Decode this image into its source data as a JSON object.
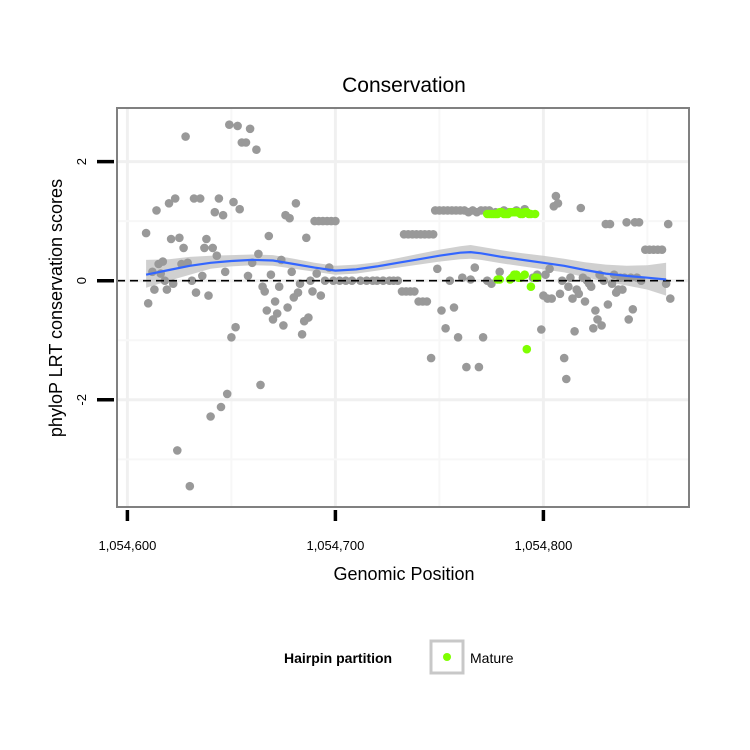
{
  "chart_data": {
    "type": "scatter",
    "title": "Conservation",
    "xlabel": "Genomic Position",
    "ylabel": "phyloP LRT conservation scores",
    "xlim": [
      1054595,
      1054870
    ],
    "ylim": [
      -3.8,
      2.9
    ],
    "x_ticks": [
      {
        "value": 1054600,
        "label": "1,054,600"
      },
      {
        "value": 1054700,
        "label": "1,054,700"
      },
      {
        "value": 1054800,
        "label": "1,054,800"
      }
    ],
    "y_ticks": [
      {
        "value": -2,
        "label": "-2"
      },
      {
        "value": 0,
        "label": "0"
      },
      {
        "value": 2,
        "label": "2"
      }
    ],
    "grid": true,
    "reference_line": {
      "y": 0,
      "style": "dashed"
    },
    "legend": {
      "title": "Hairpin partition",
      "position": "bottom",
      "entries": [
        {
          "label": "Mature",
          "color": "#7FFF00"
        }
      ]
    },
    "colors": {
      "background_points": "#999999",
      "mature": "#7FFF00",
      "smooth": "#3366FF",
      "band": "#c8c8c8"
    },
    "series": [
      {
        "color": "#999999",
        "points": [
          [
            1054609,
            0.8
          ],
          [
            1054610,
            -0.38
          ],
          [
            1054612,
            0.15
          ],
          [
            1054613,
            -0.15
          ],
          [
            1054614,
            1.18
          ],
          [
            1054615,
            0.28
          ],
          [
            1054616,
            0.12
          ],
          [
            1054617,
            0.32
          ],
          [
            1054618,
            0.0
          ],
          [
            1054619,
            -0.15
          ],
          [
            1054620,
            1.3
          ],
          [
            1054621,
            0.7
          ],
          [
            1054622,
            -0.05
          ],
          [
            1054623,
            1.38
          ],
          [
            1054624,
            -2.85
          ],
          [
            1054625,
            0.72
          ],
          [
            1054626,
            0.28
          ],
          [
            1054627,
            0.55
          ],
          [
            1054628,
            2.42
          ],
          [
            1054629,
            0.3
          ],
          [
            1054630,
            -3.45
          ],
          [
            1054631,
            0.0
          ],
          [
            1054632,
            1.38
          ],
          [
            1054633,
            -0.2
          ],
          [
            1054635,
            1.38
          ],
          [
            1054636,
            0.08
          ],
          [
            1054637,
            0.55
          ],
          [
            1054638,
            0.7
          ],
          [
            1054639,
            -0.25
          ],
          [
            1054640,
            -2.28
          ],
          [
            1054641,
            0.55
          ],
          [
            1054642,
            1.15
          ],
          [
            1054643,
            0.42
          ],
          [
            1054644,
            1.38
          ],
          [
            1054645,
            -2.12
          ],
          [
            1054646,
            1.1
          ],
          [
            1054647,
            0.15
          ],
          [
            1054648,
            -1.9
          ],
          [
            1054649,
            2.62
          ],
          [
            1054650,
            -0.95
          ],
          [
            1054651,
            1.32
          ],
          [
            1054652,
            -0.78
          ],
          [
            1054653,
            2.6
          ],
          [
            1054654,
            1.2
          ],
          [
            1054655,
            2.32
          ],
          [
            1054657,
            2.32
          ],
          [
            1054658,
            0.08
          ],
          [
            1054659,
            2.55
          ],
          [
            1054660,
            0.3
          ],
          [
            1054662,
            2.2
          ],
          [
            1054663,
            0.45
          ],
          [
            1054664,
            -1.75
          ],
          [
            1054665,
            -0.1
          ],
          [
            1054666,
            -0.18
          ],
          [
            1054667,
            -0.5
          ],
          [
            1054668,
            0.75
          ],
          [
            1054669,
            0.1
          ],
          [
            1054670,
            -0.65
          ],
          [
            1054671,
            -0.35
          ],
          [
            1054672,
            -0.55
          ],
          [
            1054673,
            -0.1
          ],
          [
            1054674,
            0.35
          ],
          [
            1054675,
            -0.75
          ],
          [
            1054676,
            1.1
          ],
          [
            1054677,
            -0.45
          ],
          [
            1054678,
            1.05
          ],
          [
            1054679,
            0.15
          ],
          [
            1054680,
            -0.28
          ],
          [
            1054681,
            1.3
          ],
          [
            1054682,
            -0.2
          ],
          [
            1054683,
            -0.05
          ],
          [
            1054684,
            -0.9
          ],
          [
            1054685,
            -0.68
          ],
          [
            1054686,
            0.72
          ],
          [
            1054687,
            -0.62
          ],
          [
            1054688,
            0.0
          ],
          [
            1054689,
            -0.18
          ],
          [
            1054690,
            1.0
          ],
          [
            1054691,
            0.12
          ],
          [
            1054692,
            1.0
          ],
          [
            1054693,
            -0.25
          ],
          [
            1054694,
            1.0
          ],
          [
            1054695,
            0.0
          ],
          [
            1054696,
            1.0
          ],
          [
            1054697,
            0.22
          ],
          [
            1054698,
            1.0
          ],
          [
            1054699,
            0.0
          ],
          [
            1054700,
            1.0
          ],
          [
            1054702,
            0.0
          ],
          [
            1054705,
            0.0
          ],
          [
            1054708,
            0.0
          ],
          [
            1054712,
            0.0
          ],
          [
            1054715,
            0.0
          ],
          [
            1054718,
            0.0
          ],
          [
            1054720,
            0.0
          ],
          [
            1054723,
            0.0
          ],
          [
            1054726,
            0.0
          ],
          [
            1054728,
            0.0
          ],
          [
            1054730,
            0.0
          ],
          [
            1054732,
            -0.18
          ],
          [
            1054733,
            0.78
          ],
          [
            1054734,
            -0.18
          ],
          [
            1054735,
            0.78
          ],
          [
            1054736,
            -0.18
          ],
          [
            1054737,
            0.78
          ],
          [
            1054738,
            -0.18
          ],
          [
            1054739,
            0.78
          ],
          [
            1054740,
            -0.35
          ],
          [
            1054741,
            0.78
          ],
          [
            1054742,
            -0.35
          ],
          [
            1054743,
            0.78
          ],
          [
            1054744,
            -0.35
          ],
          [
            1054745,
            0.78
          ],
          [
            1054746,
            -1.3
          ],
          [
            1054747,
            0.78
          ],
          [
            1054748,
            1.18
          ],
          [
            1054749,
            0.2
          ],
          [
            1054750,
            1.18
          ],
          [
            1054751,
            -0.5
          ],
          [
            1054752,
            1.18
          ],
          [
            1054753,
            -0.8
          ],
          [
            1054754,
            1.18
          ],
          [
            1054755,
            0.0
          ],
          [
            1054756,
            1.18
          ],
          [
            1054757,
            -0.45
          ],
          [
            1054758,
            1.18
          ],
          [
            1054759,
            -0.95
          ],
          [
            1054760,
            1.18
          ],
          [
            1054761,
            0.05
          ],
          [
            1054762,
            1.18
          ],
          [
            1054763,
            -1.45
          ],
          [
            1054764,
            1.15
          ],
          [
            1054765,
            0.02
          ],
          [
            1054766,
            1.18
          ],
          [
            1054767,
            0.22
          ],
          [
            1054768,
            1.15
          ],
          [
            1054769,
            -1.45
          ],
          [
            1054770,
            1.18
          ],
          [
            1054771,
            -0.95
          ],
          [
            1054772,
            1.18
          ],
          [
            1054773,
            0.0
          ],
          [
            1054774,
            1.18
          ],
          [
            1054775,
            -0.05
          ],
          [
            1054777,
            1.15
          ],
          [
            1054779,
            0.15
          ],
          [
            1054781,
            1.18
          ],
          [
            1054783,
            1.15
          ],
          [
            1054785,
            0.05
          ],
          [
            1054787,
            1.18
          ],
          [
            1054789,
            0.05
          ],
          [
            1054791,
            1.2
          ],
          [
            1054795,
            0.05
          ],
          [
            1054797,
            0.1
          ],
          [
            1054799,
            -0.82
          ],
          [
            1054800,
            -0.25
          ],
          [
            1054801,
            0.1
          ],
          [
            1054802,
            -0.3
          ],
          [
            1054803,
            0.2
          ],
          [
            1054804,
            -0.3
          ],
          [
            1054805,
            1.25
          ],
          [
            1054806,
            1.42
          ],
          [
            1054807,
            1.3
          ],
          [
            1054808,
            -0.22
          ],
          [
            1054809,
            0.0
          ],
          [
            1054810,
            -1.3
          ],
          [
            1054811,
            -1.65
          ],
          [
            1054812,
            -0.1
          ],
          [
            1054813,
            0.05
          ],
          [
            1054814,
            -0.3
          ],
          [
            1054815,
            -0.85
          ],
          [
            1054816,
            -0.15
          ],
          [
            1054817,
            -0.22
          ],
          [
            1054818,
            1.22
          ],
          [
            1054819,
            0.05
          ],
          [
            1054820,
            -0.35
          ],
          [
            1054821,
            0.0
          ],
          [
            1054822,
            -0.05
          ],
          [
            1054823,
            -0.1
          ],
          [
            1054824,
            -0.8
          ],
          [
            1054825,
            -0.5
          ],
          [
            1054826,
            -0.65
          ],
          [
            1054827,
            0.1
          ],
          [
            1054828,
            -0.75
          ],
          [
            1054829,
            0.0
          ],
          [
            1054830,
            0.95
          ],
          [
            1054831,
            -0.4
          ],
          [
            1054832,
            0.95
          ],
          [
            1054833,
            -0.05
          ],
          [
            1054834,
            0.1
          ],
          [
            1054835,
            -0.2
          ],
          [
            1054836,
            -0.15
          ],
          [
            1054837,
            0.05
          ],
          [
            1054838,
            -0.15
          ],
          [
            1054839,
            0.05
          ],
          [
            1054840,
            0.98
          ],
          [
            1054841,
            -0.65
          ],
          [
            1054842,
            0.05
          ],
          [
            1054843,
            -0.48
          ],
          [
            1054844,
            0.98
          ],
          [
            1054845,
            0.05
          ],
          [
            1054846,
            0.98
          ],
          [
            1054847,
            0.0
          ],
          [
            1054849,
            0.52
          ],
          [
            1054851,
            0.52
          ],
          [
            1054853,
            0.52
          ],
          [
            1054855,
            0.52
          ],
          [
            1054857,
            0.52
          ],
          [
            1054859,
            -0.05
          ],
          [
            1054860,
            0.95
          ],
          [
            1054861,
            -0.3
          ]
        ]
      },
      {
        "name": "Mature",
        "color": "#7FFF00",
        "points": [
          [
            1054773,
            1.12
          ],
          [
            1054774,
            1.12
          ],
          [
            1054775,
            1.12
          ],
          [
            1054776,
            1.12
          ],
          [
            1054777,
            1.12
          ],
          [
            1054778,
            1.12
          ],
          [
            1054779,
            1.15
          ],
          [
            1054780,
            1.15
          ],
          [
            1054781,
            1.12
          ],
          [
            1054782,
            1.12
          ],
          [
            1054783,
            1.12
          ],
          [
            1054784,
            1.15
          ],
          [
            1054785,
            1.15
          ],
          [
            1054786,
            1.15
          ],
          [
            1054787,
            1.15
          ],
          [
            1054788,
            1.15
          ],
          [
            1054789,
            1.12
          ],
          [
            1054790,
            1.12
          ],
          [
            1054791,
            1.15
          ],
          [
            1054792,
            1.15
          ],
          [
            1054793,
            1.12
          ],
          [
            1054794,
            1.12
          ],
          [
            1054796,
            1.12
          ],
          [
            1054778,
            0.02
          ],
          [
            1054779,
            0.02
          ],
          [
            1054784,
            0.02
          ],
          [
            1054785,
            0.05
          ],
          [
            1054786,
            0.1
          ],
          [
            1054787,
            0.1
          ],
          [
            1054788,
            0.05
          ],
          [
            1054789,
            0.05
          ],
          [
            1054791,
            0.1
          ],
          [
            1054794,
            -0.1
          ],
          [
            1054796,
            0.05
          ],
          [
            1054797,
            0.05
          ],
          [
            1054792,
            -1.15
          ]
        ]
      }
    ],
    "smooth": {
      "x": [
        1054609,
        1054620,
        1054630,
        1054640,
        1054650,
        1054660,
        1054670,
        1054680,
        1054690,
        1054700,
        1054710,
        1054720,
        1054730,
        1054740,
        1054750,
        1054760,
        1054765,
        1054770,
        1054780,
        1054790,
        1054800,
        1054810,
        1054820,
        1054830,
        1054840,
        1054850,
        1054859
      ],
      "y": [
        0.1,
        0.18,
        0.25,
        0.3,
        0.33,
        0.35,
        0.34,
        0.28,
        0.22,
        0.17,
        0.19,
        0.24,
        0.3,
        0.36,
        0.42,
        0.47,
        0.48,
        0.46,
        0.4,
        0.35,
        0.3,
        0.25,
        0.18,
        0.12,
        0.08,
        0.05,
        0.02
      ],
      "lower": [
        -0.12,
        0.0,
        0.1,
        0.2,
        0.24,
        0.26,
        0.25,
        0.2,
        0.15,
        0.1,
        0.12,
        0.17,
        0.22,
        0.27,
        0.32,
        0.36,
        0.37,
        0.35,
        0.29,
        0.24,
        0.19,
        0.14,
        0.06,
        -0.02,
        -0.08,
        -0.15,
        -0.25
      ],
      "upper": [
        0.35,
        0.36,
        0.4,
        0.42,
        0.43,
        0.44,
        0.43,
        0.37,
        0.3,
        0.25,
        0.27,
        0.31,
        0.38,
        0.45,
        0.52,
        0.58,
        0.6,
        0.57,
        0.51,
        0.46,
        0.42,
        0.37,
        0.31,
        0.27,
        0.25,
        0.26,
        0.3
      ]
    }
  }
}
